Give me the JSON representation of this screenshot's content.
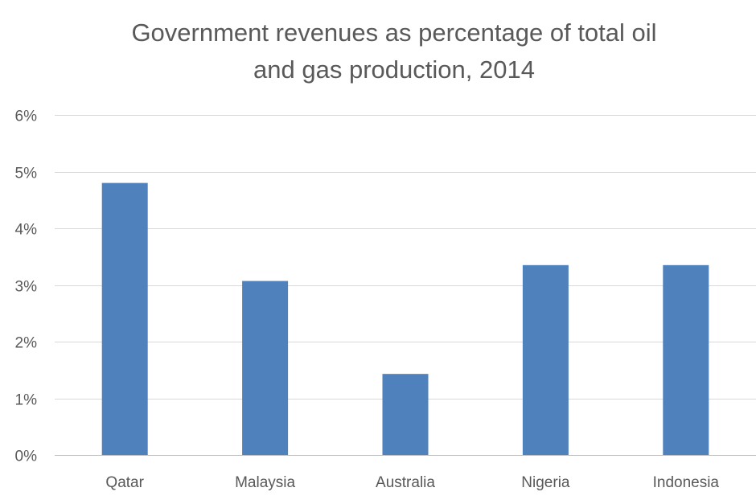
{
  "chart_data": {
    "type": "bar",
    "title_lines": [
      "Government revenues as percentage of total oil",
      "and gas production, 2014"
    ],
    "categories": [
      "Qatar",
      "Malaysia",
      "Australia",
      "Nigeria",
      "Indonesia"
    ],
    "values": [
      4.8,
      3.07,
      1.43,
      3.35,
      3.35
    ],
    "value_unit": "%",
    "ylim": [
      0,
      6
    ],
    "yticks": [
      0,
      1,
      2,
      3,
      4,
      5,
      6
    ],
    "ytick_labels": [
      "0%",
      "1%",
      "2%",
      "3%",
      "4%",
      "5%",
      "6%"
    ],
    "xlabel": "",
    "ylabel": "",
    "grid": true,
    "legend": "none",
    "bar_color": "#4f81bd"
  }
}
